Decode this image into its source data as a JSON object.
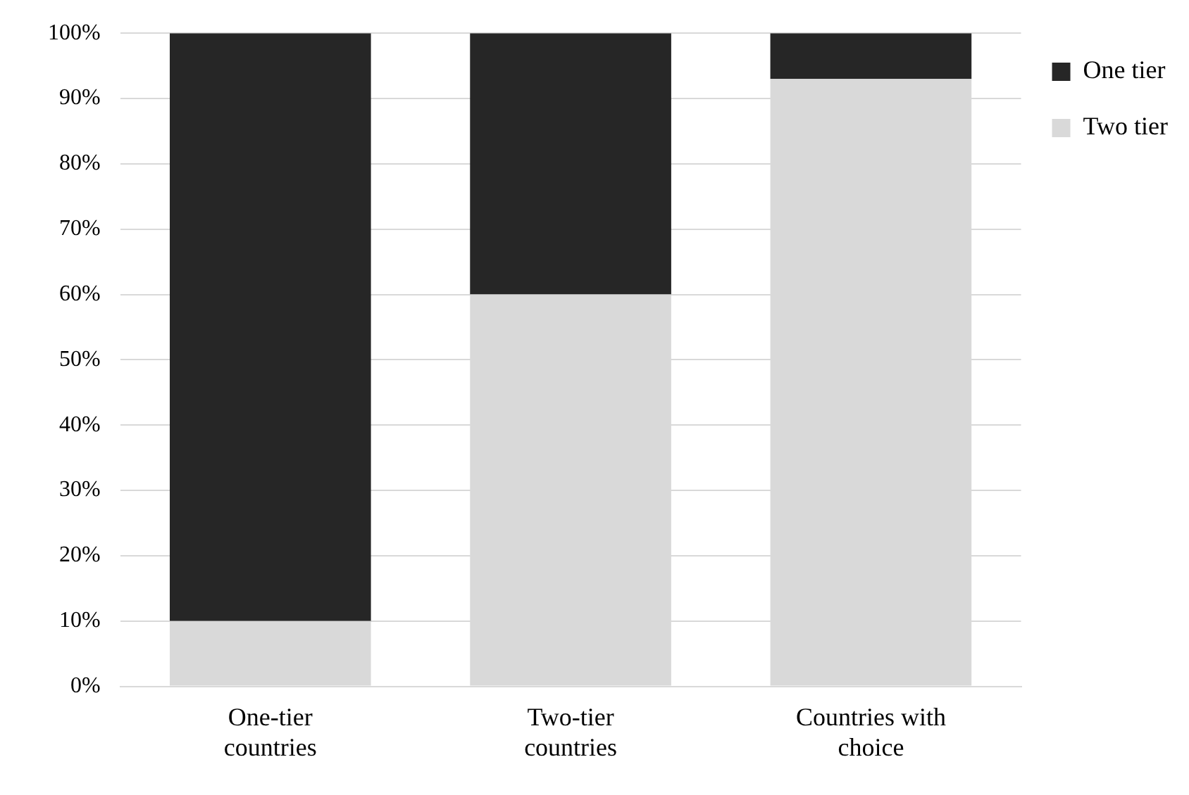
{
  "chart_data": {
    "type": "bar",
    "stacked": true,
    "categories": [
      "One-tier countries",
      "Two-tier countries",
      "Countries with choice"
    ],
    "series": [
      {
        "name": "Two tier",
        "color": "#d9d9d9",
        "values": [
          10,
          60,
          93
        ]
      },
      {
        "name": "One tier",
        "color": "#262626",
        "values": [
          90,
          40,
          7
        ]
      }
    ],
    "ylim": [
      0,
      100
    ],
    "yticks": [
      {
        "value": 0,
        "label": "0%"
      },
      {
        "value": 10,
        "label": "10%"
      },
      {
        "value": 20,
        "label": "20%"
      },
      {
        "value": 30,
        "label": "30%"
      },
      {
        "value": 40,
        "label": "40%"
      },
      {
        "value": 50,
        "label": "50%"
      },
      {
        "value": 60,
        "label": "60%"
      },
      {
        "value": 70,
        "label": "70%"
      },
      {
        "value": 80,
        "label": "80%"
      },
      {
        "value": 90,
        "label": "90%"
      },
      {
        "value": 100,
        "label": "100%"
      }
    ],
    "grid": "y",
    "legend": "right"
  }
}
